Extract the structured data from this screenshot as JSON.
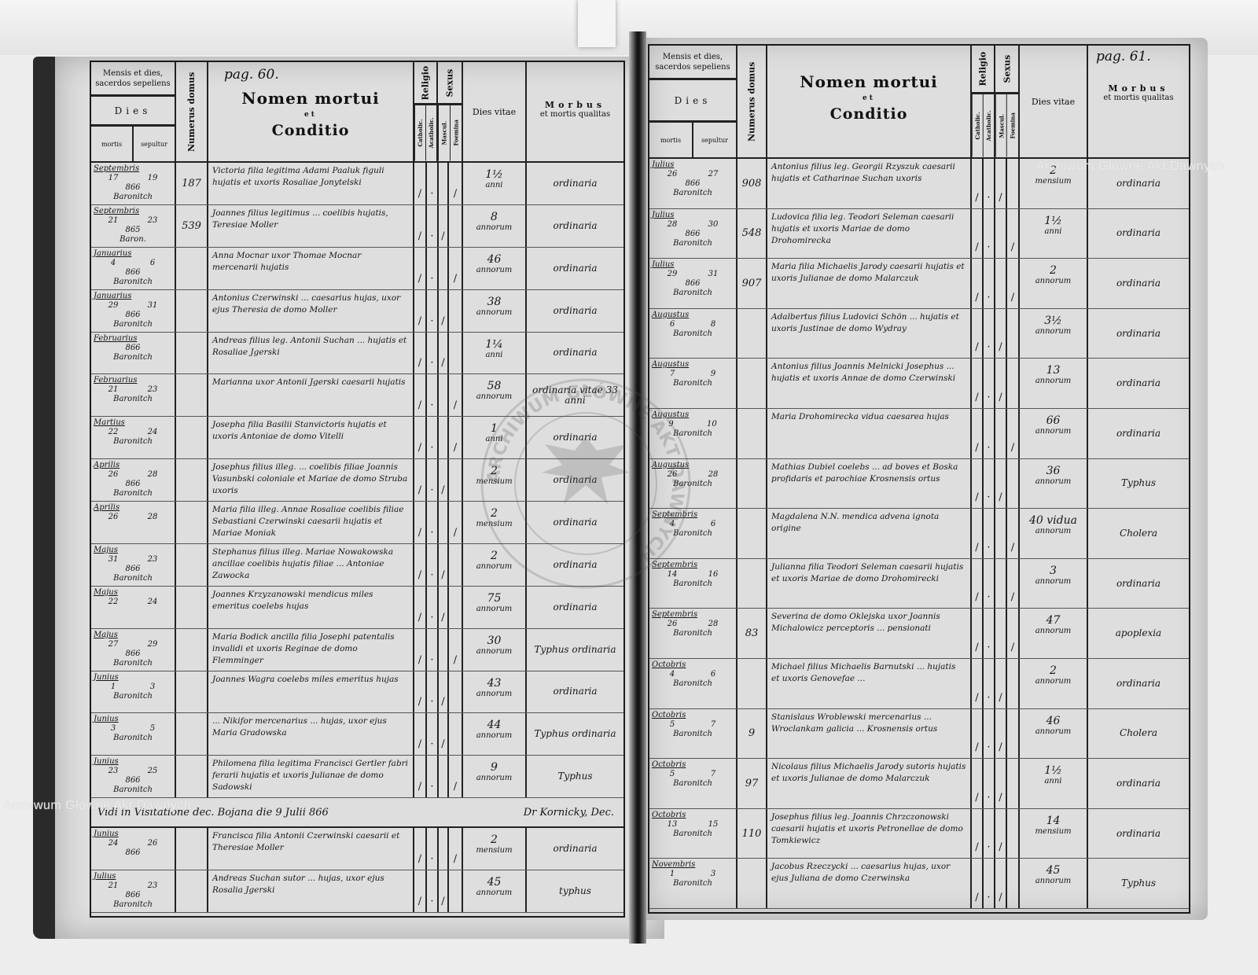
{
  "watermark": {
    "text": "Archiwum Główne Akt Dawnych",
    "stamp_text": "ARCHIWUM GŁÓWNE AKT DAWNYCH"
  },
  "header": {
    "date_title": "Mensis et dies, sacerdos sepeliens",
    "dies": "Dies",
    "mortis": "mortis",
    "sepultur": "sepultur",
    "numerus_domus": "Numerus domus",
    "nomen_1": "Nomen mortui",
    "nomen_2": "et",
    "nomen_3": "Conditio",
    "religio": "Religio",
    "sexus": "Sexus",
    "catholic": "Catholic.",
    "acatholic": "Acatholic.",
    "mascul": "Mascul.",
    "foemina": "Foemina",
    "dies_vitae": "Dies vitae",
    "morbus_1": "Morbus",
    "morbus_2": "et mortis qualitas"
  },
  "left_page": {
    "page_label": "pag. 60.",
    "entries": [
      {
        "month": "Septembris",
        "mortis": "17",
        "sepultur": "19",
        "year": "866",
        "sacerdos": "Baronitch",
        "domus": "187",
        "name": "Victoria filia legitima Adami Paaluk figuli hujatis et uxoris Rosaliae Jonytelski",
        "religio": "catholic",
        "sexus": "female",
        "age": "1½",
        "unit": "anni",
        "morbus": "ordinaria"
      },
      {
        "month": "Septembris",
        "mortis": "21",
        "sepultur": "23",
        "year": "865",
        "sacerdos": "Baron.",
        "domus": "539",
        "name": "Joannes filius legitimus ... coelibis hujatis, Teresiae Moller",
        "religio": "catholic",
        "sexus": "male",
        "age": "8",
        "unit": "annorum",
        "morbus": "ordinaria"
      },
      {
        "month": "Januarius",
        "mortis": "4",
        "sepultur": "6",
        "year": "866",
        "sacerdos": "Baronitch",
        "domus": "",
        "name": "Anna Mocnar uxor Thomae Mocnar mercenarii hujatis",
        "religio": "catholic",
        "sexus": "female",
        "age": "46",
        "unit": "annorum",
        "morbus": "ordinaria"
      },
      {
        "month": "Januarius",
        "mortis": "29",
        "sepultur": "31",
        "year": "866",
        "sacerdos": "Baronitch",
        "domus": "",
        "name": "Antonius Czerwinski ... caesarius hujas, uxor ejus Theresia de domo Moller",
        "religio": "catholic",
        "sexus": "male",
        "age": "38",
        "unit": "annorum",
        "morbus": "ordinaria"
      },
      {
        "month": "Februarius",
        "mortis": "",
        "sepultur": "",
        "year": "866",
        "sacerdos": "Baronitch",
        "domus": "",
        "name": "Andreas filius leg. Antonii Suchan ... hujatis et Rosaliae Jgerski",
        "religio": "catholic",
        "sexus": "male",
        "age": "1¼",
        "unit": "anni",
        "morbus": "ordinaria"
      },
      {
        "month": "Februarius",
        "mortis": "21",
        "sepultur": "23",
        "year": "",
        "sacerdos": "Baronitch",
        "domus": "",
        "name": "Marianna uxor Antonii Jgerski caesarii hujatis",
        "religio": "catholic",
        "sexus": "female",
        "age": "58",
        "unit": "annorum",
        "morbus": "ordinaria vitae 33 anni"
      },
      {
        "month": "Martius",
        "mortis": "22",
        "sepultur": "24",
        "year": "",
        "sacerdos": "Baronitch",
        "domus": "",
        "name": "Josepha filia Basilii Stanvictoris hujatis et uxoris Antoniae de domo Vitelli",
        "religio": "catholic",
        "sexus": "female",
        "age": "1",
        "unit": "anni",
        "morbus": "ordinaria"
      },
      {
        "month": "Aprilis",
        "mortis": "26",
        "sepultur": "28",
        "year": "866",
        "sacerdos": "Baronitch",
        "domus": "",
        "name": "Josephus filius illeg. ... coelibis filiae Joannis Vasunbski coloniale et Mariae de domo Struba uxoris",
        "religio": "catholic",
        "sexus": "male",
        "age": "2",
        "unit": "mensium",
        "morbus": "ordinaria"
      },
      {
        "month": "Aprilis",
        "mortis": "26",
        "sepultur": "28",
        "year": "",
        "sacerdos": "",
        "domus": "",
        "name": "Maria filia illeg. Annae Rosaliae coelibis filiae Sebastiani Czerwinski caesarii hujatis et Mariae Moniak",
        "religio": "catholic",
        "sexus": "female",
        "age": "2",
        "unit": "mensium",
        "morbus": "ordinaria"
      },
      {
        "month": "Majus",
        "mortis": "31",
        "sepultur": "23",
        "year": "866",
        "sacerdos": "Baronitch",
        "domus": "",
        "name": "Stephanus filius illeg. Mariae Nowakowska ancillae coelibis hujatis filiae ... Antoniae Zawocka",
        "religio": "catholic",
        "sexus": "male",
        "age": "2",
        "unit": "annorum",
        "morbus": "ordinaria"
      },
      {
        "month": "Majus",
        "mortis": "22",
        "sepultur": "24",
        "year": "",
        "sacerdos": "",
        "domus": "",
        "name": "Joannes Krzyzanowski mendicus miles emeritus coelebs hujas",
        "religio": "catholic",
        "sexus": "male",
        "age": "75",
        "unit": "annorum",
        "morbus": "ordinaria"
      },
      {
        "month": "Majus",
        "mortis": "27",
        "sepultur": "29",
        "year": "866",
        "sacerdos": "Baronitch",
        "domus": "",
        "name": "Maria Bodick ancilla filia Josephi patentalis invalidi et uxoris Reginae de domo Flemminger",
        "religio": "catholic",
        "sexus": "female",
        "age": "30",
        "unit": "annorum",
        "morbus": "Typhus ordinaria"
      },
      {
        "month": "Junius",
        "mortis": "1",
        "sepultur": "3",
        "year": "",
        "sacerdos": "Baronitch",
        "domus": "",
        "name": "Joannes Wagra coelebs miles emeritus hujas",
        "religio": "catholic",
        "sexus": "male",
        "age": "43",
        "unit": "annorum",
        "morbus": "ordinaria"
      },
      {
        "month": "Junius",
        "mortis": "3",
        "sepultur": "5",
        "year": "",
        "sacerdos": "Baronitch",
        "domus": "",
        "name": "... Nikifor mercenarius ... hujas, uxor ejus Maria Gradowska",
        "religio": "catholic",
        "sexus": "male",
        "age": "44",
        "unit": "annorum",
        "morbus": "Typhus ordinaria"
      },
      {
        "month": "Junius",
        "mortis": "23",
        "sepultur": "25",
        "year": "866",
        "sacerdos": "Baronitch",
        "domus": "",
        "name": "Philomena filia legitima Francisci Gertler fabri ferarii hujatis et uxoris Julianae de domo Sadowski",
        "religio": "catholic",
        "sexus": "female",
        "age": "9",
        "unit": "annorum",
        "morbus": "Typhus"
      }
    ],
    "note": {
      "text": "Vidi in Visitatione dec. Bojana die 9 Julii 866",
      "signature": "Dr Kornicky, Dec."
    },
    "entries_after": [
      {
        "month": "Junius",
        "mortis": "24",
        "sepultur": "26",
        "year": "866",
        "sacerdos": "",
        "domus": "",
        "name": "Francisca filia Antonii Czerwinski caesarii et Theresiae Moller",
        "religio": "catholic",
        "sexus": "female",
        "age": "2",
        "unit": "mensium",
        "morbus": "ordinaria"
      },
      {
        "month": "Julius",
        "mortis": "21",
        "sepultur": "23",
        "year": "866",
        "sacerdos": "Baronitch",
        "domus": "",
        "name": "Andreas Suchan sutor ... hujas, uxor ejus Rosalia Jgerski",
        "religio": "catholic",
        "sexus": "male",
        "age": "45",
        "unit": "annorum",
        "morbus": "typhus"
      }
    ]
  },
  "right_page": {
    "page_label": "pag. 61.",
    "entries": [
      {
        "month": "Julius",
        "mortis": "26",
        "sepultur": "27",
        "year": "866",
        "sacerdos": "Baronitch",
        "domus": "908",
        "name": "Antonius filius leg. Georgii Rzyszuk caesarii hujatis et Catharinae Suchan uxoris",
        "religio": "catholic",
        "sexus": "male",
        "age": "2",
        "unit": "mensium",
        "morbus": "ordinaria"
      },
      {
        "month": "Julius",
        "mortis": "28",
        "sepultur": "30",
        "year": "866",
        "sacerdos": "Baronitch",
        "domus": "548",
        "name": "Ludovica filia leg. Teodori Seleman caesarii hujatis et uxoris Mariae de domo Drohomirecka",
        "religio": "catholic",
        "sexus": "female",
        "age": "1½",
        "unit": "anni",
        "morbus": "ordinaria"
      },
      {
        "month": "Julius",
        "mortis": "29",
        "sepultur": "31",
        "year": "866",
        "sacerdos": "Baronitch",
        "domus": "907",
        "name": "Maria filia Michaelis Jarody caesarii hujatis et uxoris Julianae de domo Malarczuk",
        "religio": "catholic",
        "sexus": "female",
        "age": "2",
        "unit": "annorum",
        "morbus": "ordinaria"
      },
      {
        "month": "Augustus",
        "mortis": "6",
        "sepultur": "8",
        "year": "",
        "sacerdos": "Baronitch",
        "domus": "",
        "name": "Adalbertus filius Ludovici Schön ... hujatis et uxoris Justinae de domo Wydray",
        "religio": "catholic",
        "sexus": "male",
        "age": "3½",
        "unit": "annorum",
        "morbus": "ordinaria"
      },
      {
        "month": "Augustus",
        "mortis": "7",
        "sepultur": "9",
        "year": "",
        "sacerdos": "Baronitch",
        "domus": "",
        "name": "Antonius filius Joannis Melnicki Josephus ... hujatis et uxoris Annae de domo Czerwinski",
        "religio": "catholic",
        "sexus": "male",
        "age": "13",
        "unit": "annorum",
        "morbus": "ordinaria"
      },
      {
        "month": "Augustus",
        "mortis": "9",
        "sepultur": "10",
        "year": "",
        "sacerdos": "Baronitch",
        "domus": "",
        "name": "Maria Drohomirecka vidua caesarea hujas",
        "religio": "catholic",
        "sexus": "female",
        "age": "66",
        "unit": "annorum",
        "morbus": "ordinaria"
      },
      {
        "month": "Augustus",
        "mortis": "26",
        "sepultur": "28",
        "year": "",
        "sacerdos": "Baronitch",
        "domus": "",
        "name": "Mathias Dubiel coelebs ... ad boves et Boska profidaris et parochiae Krosnensis ortus",
        "religio": "catholic",
        "sexus": "male",
        "age": "36",
        "unit": "annorum",
        "morbus": "Typhus"
      },
      {
        "month": "Septembris",
        "mortis": "4",
        "sepultur": "6",
        "year": "",
        "sacerdos": "Baronitch",
        "domus": "",
        "name": "Magdalena N.N. mendica advena ignota origine",
        "religio": "catholic",
        "sexus": "female",
        "age": "40 vidua",
        "unit": "annorum",
        "morbus": "Cholera"
      },
      {
        "month": "Septembris",
        "mortis": "14",
        "sepultur": "16",
        "year": "",
        "sacerdos": "Baronitch",
        "domus": "",
        "name": "Julianna filia Teodori Seleman caesarii hujatis et uxoris Mariae de domo Drohomirecki",
        "religio": "catholic",
        "sexus": "female",
        "age": "3",
        "unit": "annorum",
        "morbus": "ordinaria"
      },
      {
        "month": "Septembris",
        "mortis": "26",
        "sepultur": "28",
        "year": "",
        "sacerdos": "Baronitch",
        "domus": "83",
        "name": "Severina de domo Oklejska uxor Joannis Michalowicz perceptoris ... pensionati",
        "religio": "catholic",
        "sexus": "female",
        "age": "47",
        "unit": "annorum",
        "morbus": "apoplexia"
      },
      {
        "month": "Octobris",
        "mortis": "4",
        "sepultur": "6",
        "year": "",
        "sacerdos": "Baronitch",
        "domus": "",
        "name": "Michael filius Michaelis Barnutski ... hujatis et uxoris Genovefae ...",
        "religio": "catholic",
        "sexus": "male",
        "age": "2",
        "unit": "annorum",
        "morbus": "ordinaria"
      },
      {
        "month": "Octobris",
        "mortis": "5",
        "sepultur": "7",
        "year": "",
        "sacerdos": "Baronitch",
        "domus": "9",
        "name": "Stanislaus Wroblewski mercenarius ... Wroclankam galicia ... Krosnensis ortus",
        "religio": "catholic",
        "sexus": "male",
        "age": "46",
        "unit": "annorum",
        "morbus": "Cholera"
      },
      {
        "month": "Octobris",
        "mortis": "5",
        "sepultur": "7",
        "year": "",
        "sacerdos": "Baronitch",
        "domus": "97",
        "name": "Nicolaus filius Michaelis Jarody sutoris hujatis et uxoris Julianae de domo Malarczuk",
        "religio": "catholic",
        "sexus": "male",
        "age": "1½",
        "unit": "anni",
        "morbus": "ordinaria"
      },
      {
        "month": "Octobris",
        "mortis": "13",
        "sepultur": "15",
        "year": "",
        "sacerdos": "Baronitch",
        "domus": "110",
        "name": "Josephus filius leg. Joannis Chrzczonowski caesarii hujatis et uxoris Petronellae de domo Tomkiewicz",
        "religio": "catholic",
        "sexus": "male",
        "age": "14",
        "unit": "mensium",
        "morbus": "ordinaria"
      },
      {
        "month": "Novembris",
        "mortis": "1",
        "sepultur": "3",
        "year": "",
        "sacerdos": "Baronitch",
        "domus": "",
        "name": "Jacobus Rzeczycki ... caesarius hujas, uxor ejus Juliana de domo Czerwinska",
        "religio": "catholic",
        "sexus": "male",
        "age": "45",
        "unit": "annorum",
        "morbus": "Typhus"
      }
    ]
  }
}
